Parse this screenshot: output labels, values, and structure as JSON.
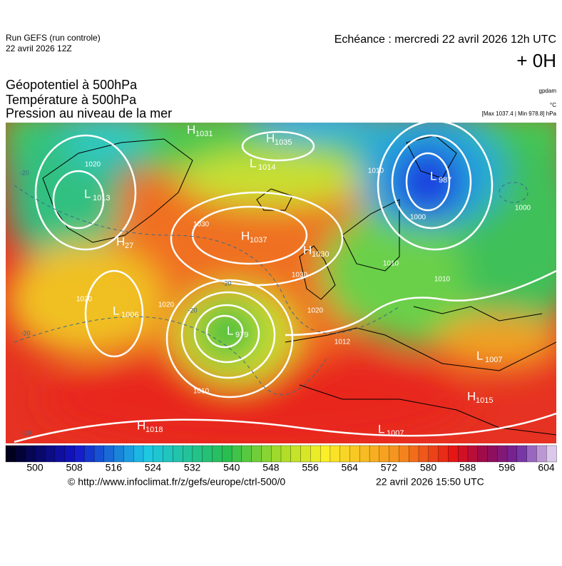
{
  "header": {
    "run": "Run GEFS (run controle)",
    "run_date": "22 avril 2026 12Z",
    "valid": "Echéance : mercredi 22 avril 2026 12h UTC",
    "lead": "+ 0H",
    "titles": [
      "Géopotentiel à 500hPa",
      "Température à 500hPa",
      "Pression au niveau de la mer"
    ],
    "units": [
      "gpdam",
      "°C",
      "[Max 1037.4 | Min 978.8] hPa"
    ]
  },
  "map": {
    "centers": [
      {
        "type": "H",
        "value": "1031"
      },
      {
        "type": "H",
        "value": "1035"
      },
      {
        "type": "L",
        "value": "1014"
      },
      {
        "type": "L",
        "value": "1013"
      },
      {
        "type": "L",
        "value": "987"
      },
      {
        "type": "H",
        "value": "1037"
      },
      {
        "type": "H",
        "value": "1030"
      },
      {
        "type": "H",
        "value": "27"
      },
      {
        "type": "L",
        "value": "1006"
      },
      {
        "type": "L",
        "value": "979"
      },
      {
        "type": "L",
        "value": "1007"
      },
      {
        "type": "H",
        "value": "1015"
      },
      {
        "type": "H",
        "value": "1018"
      },
      {
        "type": "L",
        "value": "1007"
      }
    ],
    "isobar_labels": [
      "1020",
      "1010",
      "1030",
      "1030",
      "1020",
      "1020",
      "1012",
      "1010",
      "1000",
      "1020",
      "1010",
      "1000",
      "1010"
    ],
    "temperature_labels": [
      "-20",
      "-20",
      "-20",
      "-20",
      "-10"
    ]
  },
  "colorbar": {
    "ticks": [
      500,
      508,
      516,
      524,
      532,
      540,
      548,
      556,
      564,
      572,
      580,
      588,
      596,
      604
    ]
  },
  "footer": {
    "source": "© http://www.infoclimat.fr/z/gefs/europe/ctrl-500/0",
    "generated": "22 avril 2026 15:50 UTC"
  }
}
